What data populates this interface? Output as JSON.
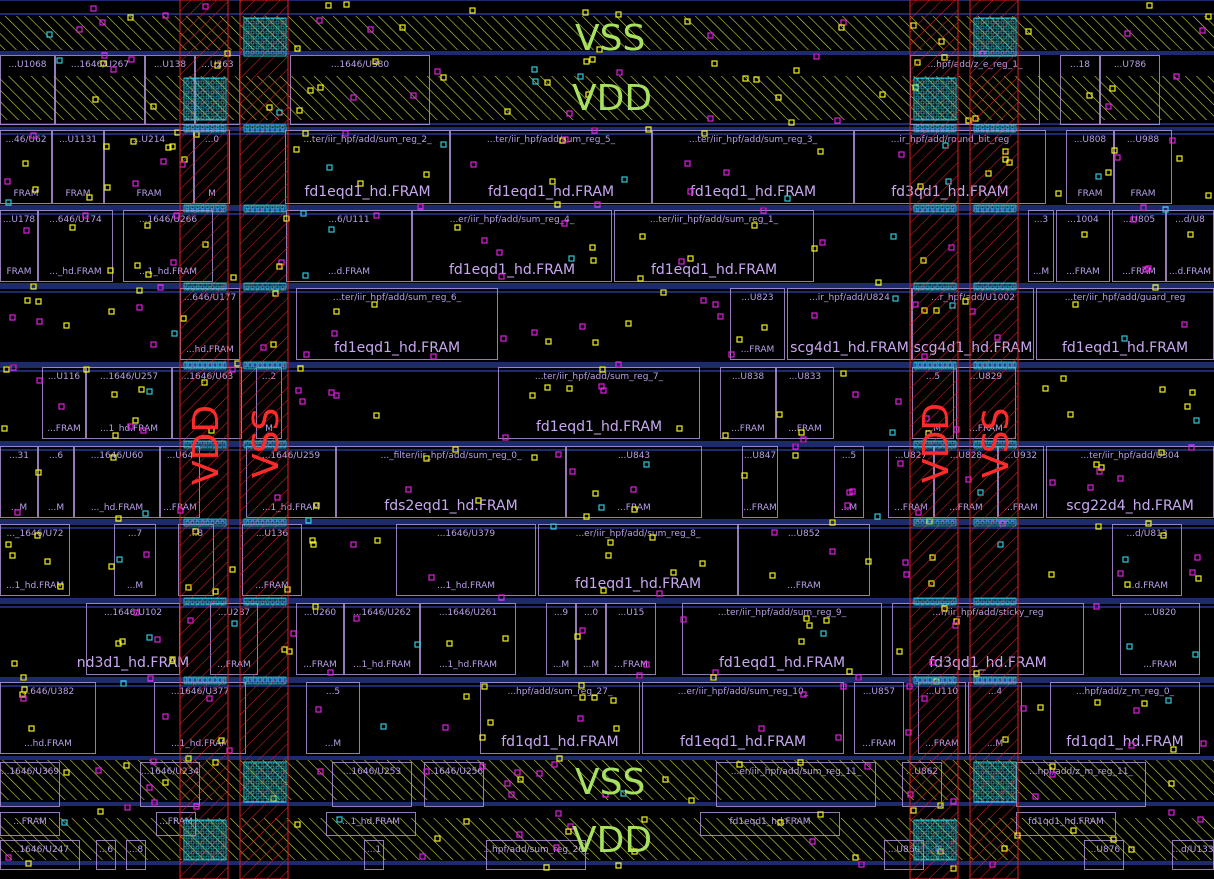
{
  "colors": {
    "background": "#000000",
    "cell_outline": "#b89ae0",
    "rail_line": "#3a55d8",
    "rail_hatch": "#c8d840",
    "power_strap": "#e02020",
    "via": "#30c8d8",
    "pin_yellow": "#f0f020",
    "pin_magenta": "#e020e0",
    "rail_text": "#a8e060",
    "strap_text": "#ff2a2a"
  },
  "rails": {
    "vss_top": "VSS",
    "vdd_top": "VDD",
    "vss_bottom": "VSS",
    "vdd_bottom": "VDD",
    "vdd_strap_left": "VDD",
    "vss_strap_left": "VSS",
    "vdd_strap_right": "VDD",
    "vss_strap_right": "VSS"
  },
  "rows": [
    {
      "cells": [
        {
          "x": 0,
          "w": 55,
          "name": "...U1068",
          "type": ""
        },
        {
          "x": 55,
          "w": 90,
          "name": "...1646/U267",
          "type": ""
        },
        {
          "x": 145,
          "w": 50,
          "name": "...U138",
          "type": ""
        },
        {
          "x": 195,
          "w": 45,
          "name": "...U263",
          "type": ""
        },
        {
          "x": 290,
          "w": 140,
          "name": "...1646/U380",
          "type": ""
        },
        {
          "x": 910,
          "w": 130,
          "name": "...hpf/add/z_e_reg_1_",
          "type": ""
        },
        {
          "x": 1060,
          "w": 40,
          "name": "...18",
          "type": ""
        },
        {
          "x": 1100,
          "w": 60,
          "name": "...U786",
          "type": ""
        }
      ]
    },
    {
      "cells": [
        {
          "x": 0,
          "w": 52,
          "name": "...46/U62",
          "type": "FRAM"
        },
        {
          "x": 52,
          "w": 52,
          "name": "...U1131",
          "type": "FRAM"
        },
        {
          "x": 104,
          "w": 90,
          "name": "...U214",
          "type": "FRAM"
        },
        {
          "x": 194,
          "w": 36,
          "name": "...0",
          "type": "M"
        },
        {
          "x": 285,
          "w": 165,
          "name": "...ter/iir_hpf/add/sum_reg_2_",
          "type": "fd1eqd1_hd.FRAM"
        },
        {
          "x": 450,
          "w": 202,
          "name": "...ter/iir_hpf/add/sum_reg_5_",
          "type": "fd1eqd1_hd.FRAM"
        },
        {
          "x": 652,
          "w": 202,
          "name": "...ter/iir_hpf/add/sum_reg_3_",
          "type": "fd1eqd1_hd.FRAM"
        },
        {
          "x": 854,
          "w": 192,
          "name": "...ir_hpf/add/round_bit_reg",
          "type": "fd3qd1_hd.FRAM"
        },
        {
          "x": 1066,
          "w": 48,
          "name": "...U808",
          "type": "FRAM"
        },
        {
          "x": 1114,
          "w": 58,
          "name": "...U988",
          "type": "FRAM"
        }
      ]
    },
    {
      "cells": [
        {
          "x": 0,
          "w": 38,
          "name": "...U178",
          "type": "FRAM"
        },
        {
          "x": 38,
          "w": 75,
          "name": "...646/U174",
          "type": "..._hd.FRAM"
        },
        {
          "x": 123,
          "w": 90,
          "name": "...1646/U266",
          "type": "...1_hd.FRAM"
        },
        {
          "x": 286,
          "w": 126,
          "name": "...6/U111",
          "type": "...d.FRAM"
        },
        {
          "x": 412,
          "w": 200,
          "name": "...er/iir_hpf/add/sum_reg_4_",
          "type": "fd1eqd1_hd.FRAM"
        },
        {
          "x": 614,
          "w": 200,
          "name": "...ter/iir_hpf/add/sum_reg_1_",
          "type": "fd1eqd1_hd.FRAM"
        },
        {
          "x": 1028,
          "w": 26,
          "name": "...3",
          "type": "...M"
        },
        {
          "x": 1056,
          "w": 54,
          "name": "...1004",
          "type": "...FRAM"
        },
        {
          "x": 1112,
          "w": 54,
          "name": "...U805",
          "type": "...FRAM"
        },
        {
          "x": 1166,
          "w": 48,
          "name": "...d/U8",
          "type": "...d.FRAM"
        }
      ]
    },
    {
      "cells": [
        {
          "x": 180,
          "w": 60,
          "name": "...646/U177",
          "type": "...hd.FRAM"
        },
        {
          "x": 296,
          "w": 202,
          "name": "...ter/iir_hpf/add/sum_reg_6_",
          "type": "fd1eqd1_hd.FRAM"
        },
        {
          "x": 730,
          "w": 55,
          "name": "...U823",
          "type": "...FRAM"
        },
        {
          "x": 787,
          "w": 125,
          "name": "...ir_hpf/add/U824",
          "type": "scg4d1_hd.FRAM"
        },
        {
          "x": 912,
          "w": 122,
          "name": "...r_hpf/add/U1002",
          "type": "scg4d1_hd.FRAM"
        },
        {
          "x": 1036,
          "w": 178,
          "name": "...ter/iir_hpf/add/guard_reg",
          "type": "fd1eqd1_hd.FRAM"
        }
      ]
    },
    {
      "cells": [
        {
          "x": 42,
          "w": 44,
          "name": "...U116",
          "type": "...FRAM"
        },
        {
          "x": 86,
          "w": 86,
          "name": "...1646/U257",
          "type": "...1_hd.FRAM"
        },
        {
          "x": 172,
          "w": 70,
          "name": "...1646/U63",
          "type": ""
        },
        {
          "x": 256,
          "w": 26,
          "name": "...2",
          "type": "M"
        },
        {
          "x": 498,
          "w": 202,
          "name": "...ter/iir_hpf/add/sum_reg_7_",
          "type": "fd1eqd1_hd.FRAM"
        },
        {
          "x": 720,
          "w": 56,
          "name": "...U838",
          "type": "...FRAM"
        },
        {
          "x": 776,
          "w": 58,
          "name": "...U833",
          "type": "...FRAM"
        },
        {
          "x": 912,
          "w": 42,
          "name": "...5",
          "type": "...M"
        },
        {
          "x": 956,
          "w": 60,
          "name": "...U829",
          "type": "...FRAM"
        }
      ]
    },
    {
      "cells": [
        {
          "x": 0,
          "w": 38,
          "name": "...31",
          "type": "...M"
        },
        {
          "x": 38,
          "w": 36,
          "name": "...6",
          "type": "...M"
        },
        {
          "x": 74,
          "w": 86,
          "name": "...1646/U60",
          "type": "..._hd.FRAM"
        },
        {
          "x": 160,
          "w": 40,
          "name": "...U64",
          "type": "...FRAM"
        },
        {
          "x": 246,
          "w": 90,
          "name": "...1646/U259",
          "type": "...1_hd.FRAM"
        },
        {
          "x": 336,
          "w": 230,
          "name": "..._filter/iir_hpf/add/sum_reg_0_",
          "type": "fds2eqd1_hd.FRAM"
        },
        {
          "x": 566,
          "w": 136,
          "name": "...U843",
          "type": "...FRAM"
        },
        {
          "x": 742,
          "w": 36,
          "name": "...U847",
          "type": "...FRAM"
        },
        {
          "x": 834,
          "w": 30,
          "name": "...5",
          "type": "...M"
        },
        {
          "x": 888,
          "w": 46,
          "name": "...U827",
          "type": "...FRAM"
        },
        {
          "x": 934,
          "w": 64,
          "name": "...U828",
          "type": "...FRAM"
        },
        {
          "x": 998,
          "w": 46,
          "name": "...U932",
          "type": "...FRAM"
        },
        {
          "x": 1046,
          "w": 168,
          "name": "...ter/iir_hpf/add/U304",
          "type": "scg22d4_hd.FRAM"
        }
      ]
    },
    {
      "cells": [
        {
          "x": 0,
          "w": 70,
          "name": "..._1646/U72",
          "type": "...1_hd.FRAM"
        },
        {
          "x": 114,
          "w": 42,
          "name": "...7",
          "type": "...M"
        },
        {
          "x": 178,
          "w": 36,
          "name": "...8",
          "type": ""
        },
        {
          "x": 242,
          "w": 60,
          "name": "...U136",
          "type": "...FRAM"
        },
        {
          "x": 396,
          "w": 140,
          "name": "...1646/U379",
          "type": "...1_hd.FRAM"
        },
        {
          "x": 538,
          "w": 200,
          "name": "...er/iir_hpf/add/sum_reg_8_",
          "type": "fd1eqd1_hd.FRAM"
        },
        {
          "x": 738,
          "w": 132,
          "name": "...U852",
          "type": "...FRAM"
        },
        {
          "x": 1112,
          "w": 70,
          "name": "...d/U813",
          "type": "...d.FRAM"
        }
      ]
    },
    {
      "cells": [
        {
          "x": 86,
          "w": 94,
          "name": "...1646/U102",
          "type": "nd3d1_hd.FRAM"
        },
        {
          "x": 210,
          "w": 48,
          "name": "...U287",
          "type": "...FRAM"
        },
        {
          "x": 296,
          "w": 48,
          "name": "...U260",
          "type": "...FRAM"
        },
        {
          "x": 344,
          "w": 76,
          "name": "...1646/U262",
          "type": "...1_hd.FRAM"
        },
        {
          "x": 420,
          "w": 96,
          "name": "...1646/U261",
          "type": "...1_hd.FRAM"
        },
        {
          "x": 546,
          "w": 30,
          "name": "...9",
          "type": "...M"
        },
        {
          "x": 576,
          "w": 30,
          "name": "...0",
          "type": "...M"
        },
        {
          "x": 606,
          "w": 50,
          "name": "...U15",
          "type": "...FRAM"
        },
        {
          "x": 682,
          "w": 200,
          "name": "...ter/iir_hpf/add/sum_reg_9_",
          "type": "fd1eqd1_hd.FRAM"
        },
        {
          "x": 892,
          "w": 192,
          "name": "...r/iir_hpf/add/sticky_reg",
          "type": "fd3qd1_hd.FRAM"
        },
        {
          "x": 1120,
          "w": 80,
          "name": "...U820",
          "type": "...FRAM"
        }
      ]
    },
    {
      "cells": [
        {
          "x": 0,
          "w": 96,
          "name": "...646/U382",
          "type": "...hd.FRAM"
        },
        {
          "x": 154,
          "w": 92,
          "name": "...1646/U377",
          "type": "...1_hd.FRAM"
        },
        {
          "x": 306,
          "w": 54,
          "name": "...5",
          "type": "...M"
        },
        {
          "x": 480,
          "w": 160,
          "name": "...hpf/add/sum_reg_27_",
          "type": "fd1qd1_hd.FRAM"
        },
        {
          "x": 642,
          "w": 202,
          "name": "...er/iir_hpf/add/sum_reg_10_",
          "type": "fd1eqd1_hd.FRAM"
        },
        {
          "x": 854,
          "w": 50,
          "name": "...U857",
          "type": "...FRAM"
        },
        {
          "x": 918,
          "w": 48,
          "name": "...U110",
          "type": "...FRAM"
        },
        {
          "x": 968,
          "w": 54,
          "name": "...4",
          "type": "...M"
        },
        {
          "x": 1050,
          "w": 150,
          "name": "...hpf/add/z_m_reg_0_",
          "type": "fd1qd1_hd.FRAM"
        }
      ]
    },
    {
      "cells": [
        {
          "x": 0,
          "w": 60,
          "name": "...1646/U369",
          "type": ""
        },
        {
          "x": 140,
          "w": 60,
          "name": "...1646/U234",
          "type": ""
        },
        {
          "x": 332,
          "w": 80,
          "name": "...1646/U253",
          "type": ""
        },
        {
          "x": 424,
          "w": 60,
          "name": "...1646/U256",
          "type": ""
        },
        {
          "x": 716,
          "w": 160,
          "name": "...er/iir_hpf/add/sum_reg_11_",
          "type": ""
        },
        {
          "x": 902,
          "w": 40,
          "name": "...U862",
          "type": ""
        },
        {
          "x": 1016,
          "w": 130,
          "name": "...hpf/add/z_m_reg_11_",
          "type": ""
        }
      ]
    },
    {
      "cells": [
        {
          "x": 0,
          "w": 60,
          "name": "...FRAM",
          "type": ""
        },
        {
          "x": 156,
          "w": 40,
          "name": "...FRAM",
          "type": ""
        },
        {
          "x": 326,
          "w": 90,
          "name": "...1_hd.FRAM",
          "type": ""
        },
        {
          "x": 700,
          "w": 140,
          "name": "fd1eqd1_hd.FRAM",
          "type": ""
        },
        {
          "x": 1016,
          "w": 100,
          "name": "fd1qd1_hd.FRAM",
          "type": ""
        }
      ]
    },
    {
      "cells": [
        {
          "x": 0,
          "w": 80,
          "name": "...1646/U247",
          "type": ""
        },
        {
          "x": 96,
          "w": 20,
          "name": "...6",
          "type": ""
        },
        {
          "x": 126,
          "w": 20,
          "name": "...8",
          "type": ""
        },
        {
          "x": 364,
          "w": 20,
          "name": "...1",
          "type": ""
        },
        {
          "x": 486,
          "w": 100,
          "name": "...hpf/add/sum_reg_26_",
          "type": ""
        },
        {
          "x": 884,
          "w": 40,
          "name": "...U860",
          "type": ""
        },
        {
          "x": 1084,
          "w": 40,
          "name": "...U876",
          "type": ""
        },
        {
          "x": 1172,
          "w": 42,
          "name": "...d/U133",
          "type": ""
        }
      ]
    }
  ]
}
